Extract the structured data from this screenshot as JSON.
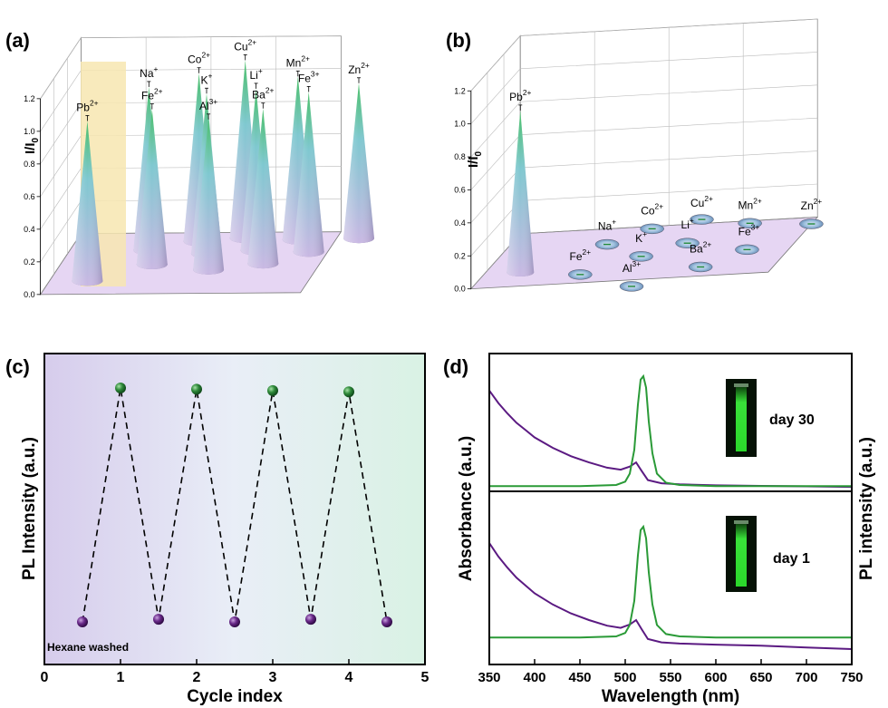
{
  "panel_labels": [
    "(a)",
    "(b)",
    "(c)",
    "(d)"
  ],
  "colors": {
    "cone_top": "#4bbf6b",
    "cone_mid": "#7fc8d0",
    "cone_base": "#c9b8e3",
    "floor": "#e6d6f3",
    "highlight": "#f7e6b0",
    "green_point": "#1f7a2f",
    "purple_point": "#5b1e7a",
    "absorbance_line": "#5b1a82",
    "pl_line": "#2a9a37",
    "cuvette_glow": "#3aff3a"
  },
  "chart_data": [
    {
      "panel": "(a)",
      "type": "bar3d-cone",
      "ylabel": "I/I0",
      "y_ticks": [
        "0.0",
        "0.2",
        "0.4",
        "0.6",
        "0.8",
        "1.0",
        "1.2"
      ],
      "ylim": [
        0,
        1.2
      ],
      "highlighted": "Pb2+",
      "bars": [
        {
          "ion": "Pb",
          "charge": "2+",
          "value": 0.98
        },
        {
          "ion": "Na",
          "charge": "+",
          "value": 1.0
        },
        {
          "ion": "Fe",
          "charge": "2+",
          "value": 0.95
        },
        {
          "ion": "Co",
          "charge": "2+",
          "value": 1.03
        },
        {
          "ion": "K",
          "charge": "+",
          "value": 0.98
        },
        {
          "ion": "Al",
          "charge": "3+",
          "value": 0.92
        },
        {
          "ion": "Cu",
          "charge": "2+",
          "value": 1.09
        },
        {
          "ion": "Li",
          "charge": "+",
          "value": 0.99
        },
        {
          "ion": "Ba",
          "charge": "2+",
          "value": 0.95
        },
        {
          "ion": "Mn",
          "charge": "2+",
          "value": 1.0
        },
        {
          "ion": "Fe",
          "charge": "3+",
          "value": 0.98
        },
        {
          "ion": "Zn",
          "charge": "2+",
          "value": 0.95
        }
      ]
    },
    {
      "panel": "(b)",
      "type": "bar3d-cone",
      "ylabel": "I/I0",
      "y_ticks": [
        "0.0",
        "0.2",
        "0.4",
        "0.6",
        "0.8",
        "1.0",
        "1.2"
      ],
      "ylim": [
        0,
        1.2
      ],
      "bars": [
        {
          "ion": "Pb",
          "charge": "2+",
          "value": 0.98
        },
        {
          "ion": "Na",
          "charge": "+",
          "value": 0.0
        },
        {
          "ion": "Fe",
          "charge": "2+",
          "value": 0.0
        },
        {
          "ion": "Co",
          "charge": "2+",
          "value": 0.0
        },
        {
          "ion": "K",
          "charge": "+",
          "value": 0.0
        },
        {
          "ion": "Al",
          "charge": "3+",
          "value": 0.0
        },
        {
          "ion": "Cu",
          "charge": "2+",
          "value": 0.0
        },
        {
          "ion": "Li",
          "charge": "+",
          "value": 0.0
        },
        {
          "ion": "Ba",
          "charge": "2+",
          "value": 0.0
        },
        {
          "ion": "Mn",
          "charge": "2+",
          "value": 0.0
        },
        {
          "ion": "Fe",
          "charge": "3+",
          "value": 0.0
        },
        {
          "ion": "Zn",
          "charge": "2+",
          "value": 0.0
        }
      ]
    },
    {
      "panel": "(c)",
      "type": "scatter",
      "xlabel": "Cycle index",
      "ylabel": "PL Intensity (a.u.)",
      "xlim": [
        0,
        5
      ],
      "x_ticks": [
        "0",
        "1",
        "2",
        "3",
        "4",
        "5"
      ],
      "ylim": [
        0,
        1
      ],
      "annotation": "Hexane washed",
      "points": [
        {
          "x": 0.5,
          "y": 0.06,
          "kind": "washed"
        },
        {
          "x": 1.0,
          "y": 0.97,
          "kind": "restored"
        },
        {
          "x": 1.5,
          "y": 0.07,
          "kind": "washed"
        },
        {
          "x": 2.0,
          "y": 0.965,
          "kind": "restored"
        },
        {
          "x": 2.5,
          "y": 0.06,
          "kind": "washed"
        },
        {
          "x": 3.0,
          "y": 0.96,
          "kind": "restored"
        },
        {
          "x": 3.5,
          "y": 0.07,
          "kind": "washed"
        },
        {
          "x": 4.0,
          "y": 0.955,
          "kind": "restored"
        },
        {
          "x": 4.5,
          "y": 0.06,
          "kind": "washed"
        }
      ]
    },
    {
      "panel": "(d)",
      "type": "line",
      "xlabel": "Wavelength (nm)",
      "ylabel_left": "Absorbance (a.u.)",
      "ylabel_right": "PL intensity (a.u.)",
      "xlim": [
        350,
        750
      ],
      "x_ticks": [
        "350",
        "400",
        "450",
        "500",
        "550",
        "600",
        "650",
        "700",
        "750"
      ],
      "groups": [
        {
          "label": "day 30",
          "absorbance": {
            "x": [
              350,
              360,
              370,
              380,
              390,
              400,
              420,
              440,
              460,
              480,
              495,
              505,
              512,
              518,
              525,
              540,
              560,
              600,
              650,
              700,
              750
            ],
            "y": [
              0.95,
              0.83,
              0.73,
              0.64,
              0.57,
              0.5,
              0.4,
              0.32,
              0.26,
              0.21,
              0.19,
              0.22,
              0.26,
              0.18,
              0.09,
              0.06,
              0.05,
              0.04,
              0.035,
              0.03,
              0.025
            ]
          },
          "pl": {
            "x": [
              350,
              450,
              490,
              500,
              505,
              510,
              514,
              517,
              520,
              523,
              526,
              530,
              535,
              545,
              560,
              600,
              750
            ],
            "y": [
              0.03,
              0.03,
              0.04,
              0.07,
              0.14,
              0.35,
              0.75,
              0.97,
              1.0,
              0.9,
              0.6,
              0.32,
              0.14,
              0.06,
              0.04,
              0.03,
              0.03
            ]
          }
        },
        {
          "label": "day 1",
          "absorbance": {
            "x": [
              350,
              360,
              370,
              380,
              390,
              400,
              420,
              440,
              460,
              480,
              495,
              505,
              512,
              518,
              525,
              540,
              560,
              600,
              650,
              700,
              750
            ],
            "y": [
              0.95,
              0.83,
              0.73,
              0.64,
              0.57,
              0.5,
              0.4,
              0.32,
              0.26,
              0.21,
              0.19,
              0.22,
              0.26,
              0.18,
              0.09,
              0.06,
              0.05,
              0.04,
              0.03,
              0.015,
              0.0
            ]
          },
          "pl": {
            "x": [
              350,
              450,
              490,
              500,
              505,
              510,
              514,
              517,
              520,
              523,
              526,
              530,
              535,
              545,
              560,
              600,
              750
            ],
            "y": [
              0.03,
              0.03,
              0.04,
              0.07,
              0.14,
              0.35,
              0.75,
              0.97,
              1.0,
              0.9,
              0.6,
              0.32,
              0.14,
              0.06,
              0.04,
              0.03,
              0.03
            ]
          }
        }
      ]
    }
  ]
}
